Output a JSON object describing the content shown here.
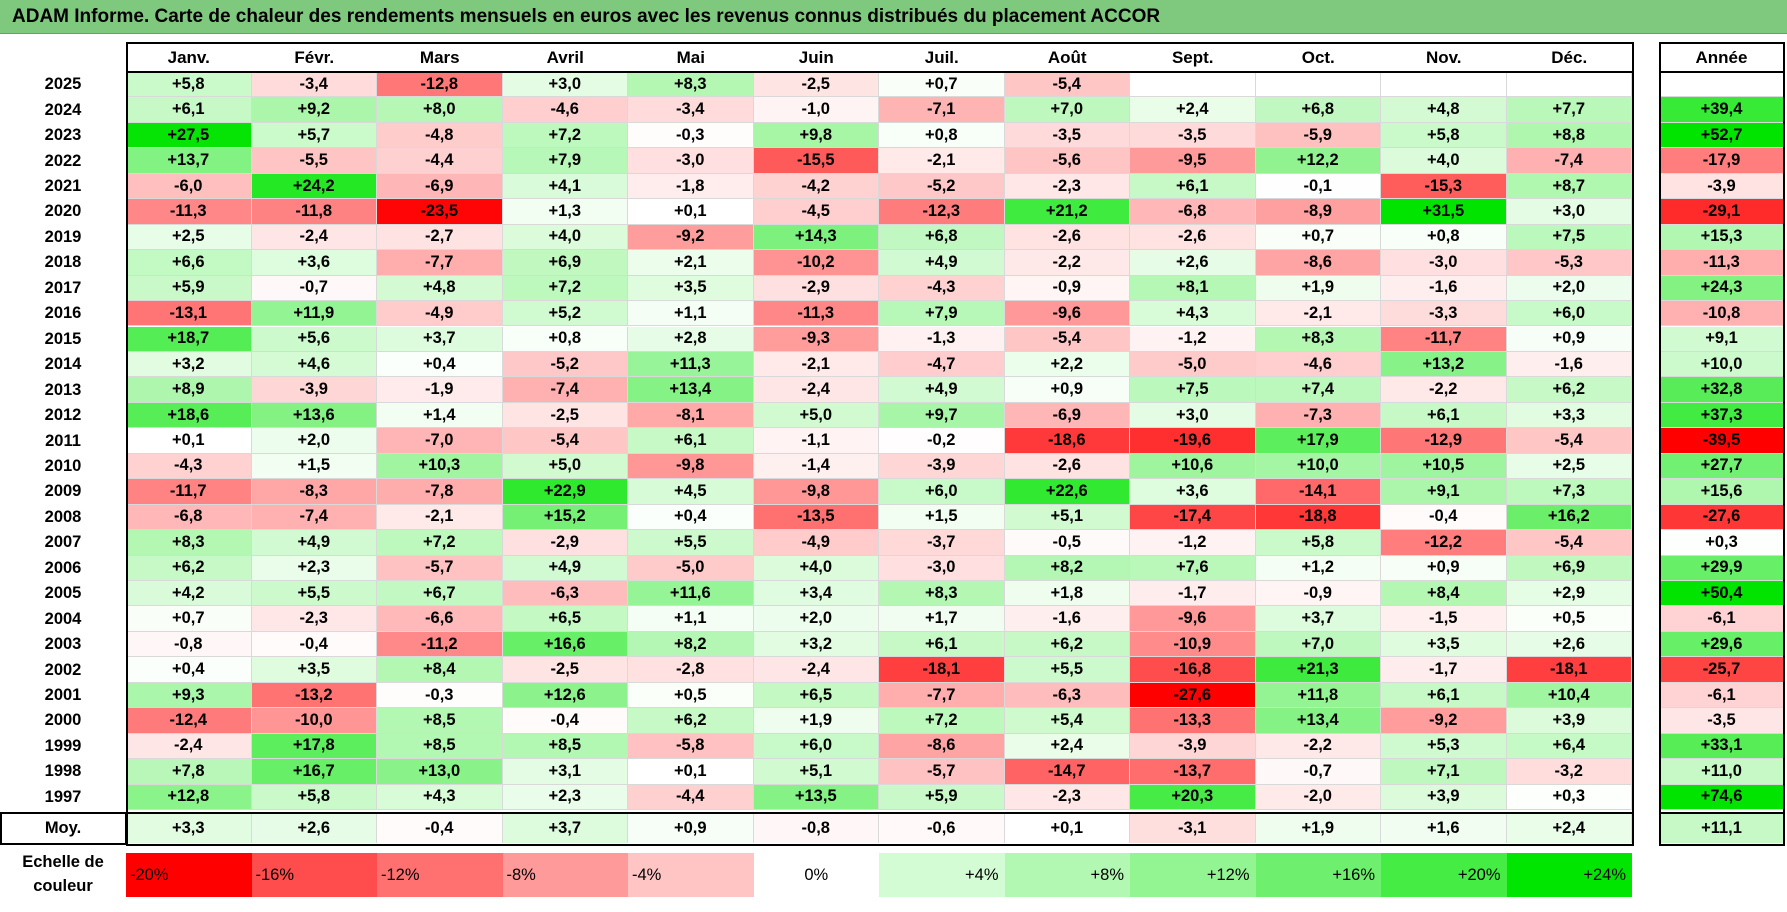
{
  "title": "ADAM Informe. Carte de chaleur des rendements mensuels en euros avec les revenus connus distribués du placement ACCOR",
  "chart_data": {
    "type": "heatmap",
    "title": "ADAM Informe. Carte de chaleur des rendements mensuels en euros avec les revenus connus distribués du placement ACCOR",
    "columns": [
      "Janv.",
      "Févr.",
      "Mars",
      "Avril",
      "Mai",
      "Juin",
      "Juil.",
      "Août",
      "Sept.",
      "Oct.",
      "Nov.",
      "Déc."
    ],
    "year_column": "Année",
    "rows": [
      {
        "year": "2025",
        "values": [
          "+5,8",
          "-3,4",
          "-12,8",
          "+3,0",
          "+8,3",
          "-2,5",
          "+0,7",
          "-5,4",
          "",
          "",
          "",
          ""
        ],
        "annual": ""
      },
      {
        "year": "2024",
        "values": [
          "+6,1",
          "+9,2",
          "+8,0",
          "-4,6",
          "-3,4",
          "-1,0",
          "-7,1",
          "+7,0",
          "+2,4",
          "+6,8",
          "+4,8",
          "+7,7"
        ],
        "annual": "+39,4"
      },
      {
        "year": "2023",
        "values": [
          "+27,5",
          "+5,7",
          "-4,8",
          "+7,2",
          "-0,3",
          "+9,8",
          "+0,8",
          "-3,5",
          "-3,5",
          "-5,9",
          "+5,8",
          "+8,8"
        ],
        "annual": "+52,7"
      },
      {
        "year": "2022",
        "values": [
          "+13,7",
          "-5,5",
          "-4,4",
          "+7,9",
          "-3,0",
          "-15,5",
          "-2,1",
          "-5,6",
          "-9,5",
          "+12,2",
          "+4,0",
          "-7,4"
        ],
        "annual": "-17,9"
      },
      {
        "year": "2021",
        "values": [
          "-6,0",
          "+24,2",
          "-6,9",
          "+4,1",
          "-1,8",
          "-4,2",
          "-5,2",
          "-2,3",
          "+6,1",
          "-0,1",
          "-15,3",
          "+8,7"
        ],
        "annual": "-3,9"
      },
      {
        "year": "2020",
        "values": [
          "-11,3",
          "-11,8",
          "-23,5",
          "+1,3",
          "+0,1",
          "-4,5",
          "-12,3",
          "+21,2",
          "-6,8",
          "-8,9",
          "+31,5",
          "+3,0"
        ],
        "annual": "-29,1"
      },
      {
        "year": "2019",
        "values": [
          "+2,5",
          "-2,4",
          "-2,7",
          "+4,0",
          "-9,2",
          "+14,3",
          "+6,8",
          "-2,6",
          "-2,6",
          "+0,7",
          "+0,8",
          "+7,5"
        ],
        "annual": "+15,3"
      },
      {
        "year": "2018",
        "values": [
          "+6,6",
          "+3,6",
          "-7,7",
          "+6,9",
          "+2,1",
          "-10,2",
          "+4,9",
          "-2,2",
          "+2,6",
          "-8,6",
          "-3,0",
          "-5,3"
        ],
        "annual": "-11,3"
      },
      {
        "year": "2017",
        "values": [
          "+5,9",
          "-0,7",
          "+4,8",
          "+7,2",
          "+3,5",
          "-2,9",
          "-4,3",
          "-0,9",
          "+8,1",
          "+1,9",
          "-1,6",
          "+2,0"
        ],
        "annual": "+24,3"
      },
      {
        "year": "2016",
        "values": [
          "-13,1",
          "+11,9",
          "-4,9",
          "+5,2",
          "+1,1",
          "-11,3",
          "+7,9",
          "-9,6",
          "+4,3",
          "-2,1",
          "-3,3",
          "+6,0"
        ],
        "annual": "-10,8"
      },
      {
        "year": "2015",
        "values": [
          "+18,7",
          "+5,6",
          "+3,7",
          "+0,8",
          "+2,8",
          "-9,3",
          "-1,3",
          "-5,4",
          "-1,2",
          "+8,3",
          "-11,7",
          "+0,9"
        ],
        "annual": "+9,1"
      },
      {
        "year": "2014",
        "values": [
          "+3,2",
          "+4,6",
          "+0,4",
          "-5,2",
          "+11,3",
          "-2,1",
          "-4,7",
          "+2,2",
          "-5,0",
          "-4,6",
          "+13,2",
          "-1,6"
        ],
        "annual": "+10,0"
      },
      {
        "year": "2013",
        "values": [
          "+8,9",
          "-3,9",
          "-1,9",
          "-7,4",
          "+13,4",
          "-2,4",
          "+4,9",
          "+0,9",
          "+7,5",
          "+7,4",
          "-2,2",
          "+6,2"
        ],
        "annual": "+32,8"
      },
      {
        "year": "2012",
        "values": [
          "+18,6",
          "+13,6",
          "+1,4",
          "-2,5",
          "-8,1",
          "+5,0",
          "+9,7",
          "-6,9",
          "+3,0",
          "-7,3",
          "+6,1",
          "+3,3"
        ],
        "annual": "+37,3"
      },
      {
        "year": "2011",
        "values": [
          "+0,1",
          "+2,0",
          "-7,0",
          "-5,4",
          "+6,1",
          "-1,1",
          "-0,2",
          "-18,6",
          "-19,6",
          "+17,9",
          "-12,9",
          "-5,4"
        ],
        "annual": "-39,5"
      },
      {
        "year": "2010",
        "values": [
          "-4,3",
          "+1,5",
          "+10,3",
          "+5,0",
          "-9,8",
          "-1,4",
          "-3,9",
          "-2,6",
          "+10,6",
          "+10,0",
          "+10,5",
          "+2,5"
        ],
        "annual": "+27,7"
      },
      {
        "year": "2009",
        "values": [
          "-11,7",
          "-8,3",
          "-7,8",
          "+22,9",
          "+4,5",
          "-9,8",
          "+6,0",
          "+22,6",
          "+3,6",
          "-14,1",
          "+9,1",
          "+7,3"
        ],
        "annual": "+15,6"
      },
      {
        "year": "2008",
        "values": [
          "-6,8",
          "-7,4",
          "-2,1",
          "+15,2",
          "+0,4",
          "-13,5",
          "+1,5",
          "+5,1",
          "-17,4",
          "-18,8",
          "-0,4",
          "+16,2"
        ],
        "annual": "-27,6"
      },
      {
        "year": "2007",
        "values": [
          "+8,3",
          "+4,9",
          "+7,2",
          "-2,9",
          "+5,5",
          "-4,9",
          "-3,7",
          "-0,5",
          "-1,2",
          "+5,8",
          "-12,2",
          "-5,4"
        ],
        "annual": "+0,3"
      },
      {
        "year": "2006",
        "values": [
          "+6,2",
          "+2,3",
          "-5,7",
          "+4,9",
          "-5,0",
          "+4,0",
          "-3,0",
          "+8,2",
          "+7,6",
          "+1,2",
          "+0,9",
          "+6,9"
        ],
        "annual": "+29,9"
      },
      {
        "year": "2005",
        "values": [
          "+4,2",
          "+5,5",
          "+6,7",
          "-6,3",
          "+11,6",
          "+3,4",
          "+8,3",
          "+1,8",
          "-1,7",
          "-0,9",
          "+8,4",
          "+2,9"
        ],
        "annual": "+50,4"
      },
      {
        "year": "2004",
        "values": [
          "+0,7",
          "-2,3",
          "-6,6",
          "+6,5",
          "+1,1",
          "+2,0",
          "+1,7",
          "-1,6",
          "-9,6",
          "+3,7",
          "-1,5",
          "+0,5"
        ],
        "annual": "-6,1"
      },
      {
        "year": "2003",
        "values": [
          "-0,8",
          "-0,4",
          "-11,2",
          "+16,6",
          "+8,2",
          "+3,2",
          "+6,1",
          "+6,2",
          "-10,9",
          "+7,0",
          "+3,5",
          "+2,6"
        ],
        "annual": "+29,6"
      },
      {
        "year": "2002",
        "values": [
          "+0,4",
          "+3,5",
          "+8,4",
          "-2,5",
          "-2,8",
          "-2,4",
          "-18,1",
          "+5,5",
          "-16,8",
          "+21,3",
          "-1,7",
          "-18,1"
        ],
        "annual": "-25,7"
      },
      {
        "year": "2001",
        "values": [
          "+9,3",
          "-13,2",
          "-0,3",
          "+12,6",
          "+0,5",
          "+6,5",
          "-7,7",
          "-6,3",
          "-27,6",
          "+11,8",
          "+6,1",
          "+10,4"
        ],
        "annual": "-6,1"
      },
      {
        "year": "2000",
        "values": [
          "-12,4",
          "-10,0",
          "+8,5",
          "-0,4",
          "+6,2",
          "+1,9",
          "+7,2",
          "+5,4",
          "-13,3",
          "+13,4",
          "-9,2",
          "+3,9"
        ],
        "annual": "-3,5"
      },
      {
        "year": "1999",
        "values": [
          "-2,4",
          "+17,8",
          "+8,5",
          "+8,5",
          "-5,8",
          "+6,0",
          "-8,6",
          "+2,4",
          "-3,9",
          "-2,2",
          "+5,3",
          "+6,4"
        ],
        "annual": "+33,1"
      },
      {
        "year": "1998",
        "values": [
          "+7,8",
          "+16,7",
          "+13,0",
          "+3,1",
          "+0,1",
          "+5,1",
          "-5,7",
          "-14,7",
          "-13,7",
          "-0,7",
          "+7,1",
          "-3,2"
        ],
        "annual": "+11,0"
      },
      {
        "year": "1997",
        "values": [
          "+12,8",
          "+5,8",
          "+4,3",
          "+2,3",
          "-4,4",
          "+13,5",
          "+5,9",
          "-2,3",
          "+20,3",
          "-2,0",
          "+3,9",
          "+0,3"
        ],
        "annual": "+74,6"
      }
    ],
    "average": {
      "label": "Moy.",
      "values": [
        "+3,3",
        "+2,6",
        "-0,4",
        "+3,7",
        "+0,9",
        "-0,8",
        "-0,6",
        "+0,1",
        "-3,1",
        "+1,9",
        "+1,6",
        "+2,4"
      ],
      "annual": "+11,1"
    },
    "scale": {
      "label": "Echelle de couleur",
      "stops": [
        "-20%",
        "-16%",
        "-12%",
        "-8%",
        "-4%",
        "0%",
        "+4%",
        "+8%",
        "+12%",
        "+16%",
        "+20%",
        "+24%"
      ],
      "colors": [
        "#ff0000",
        "#ff4d4d",
        "#ff7070",
        "#ff9a9a",
        "#ffc4c4",
        "#ffffff",
        "#d4fcd4",
        "#b2f7b2",
        "#92f592",
        "#6ef06e",
        "#44ec44",
        "#00e600"
      ]
    }
  }
}
